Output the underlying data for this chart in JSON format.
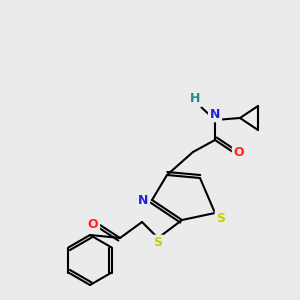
{
  "bg_color": "#ebebeb",
  "bond_color": "#000000",
  "atom_colors": {
    "S": "#cccc00",
    "N": "#2222dd",
    "O": "#ff2222",
    "H": "#228888",
    "C": "#000000"
  },
  "lw": 1.5,
  "fontsize": 9
}
